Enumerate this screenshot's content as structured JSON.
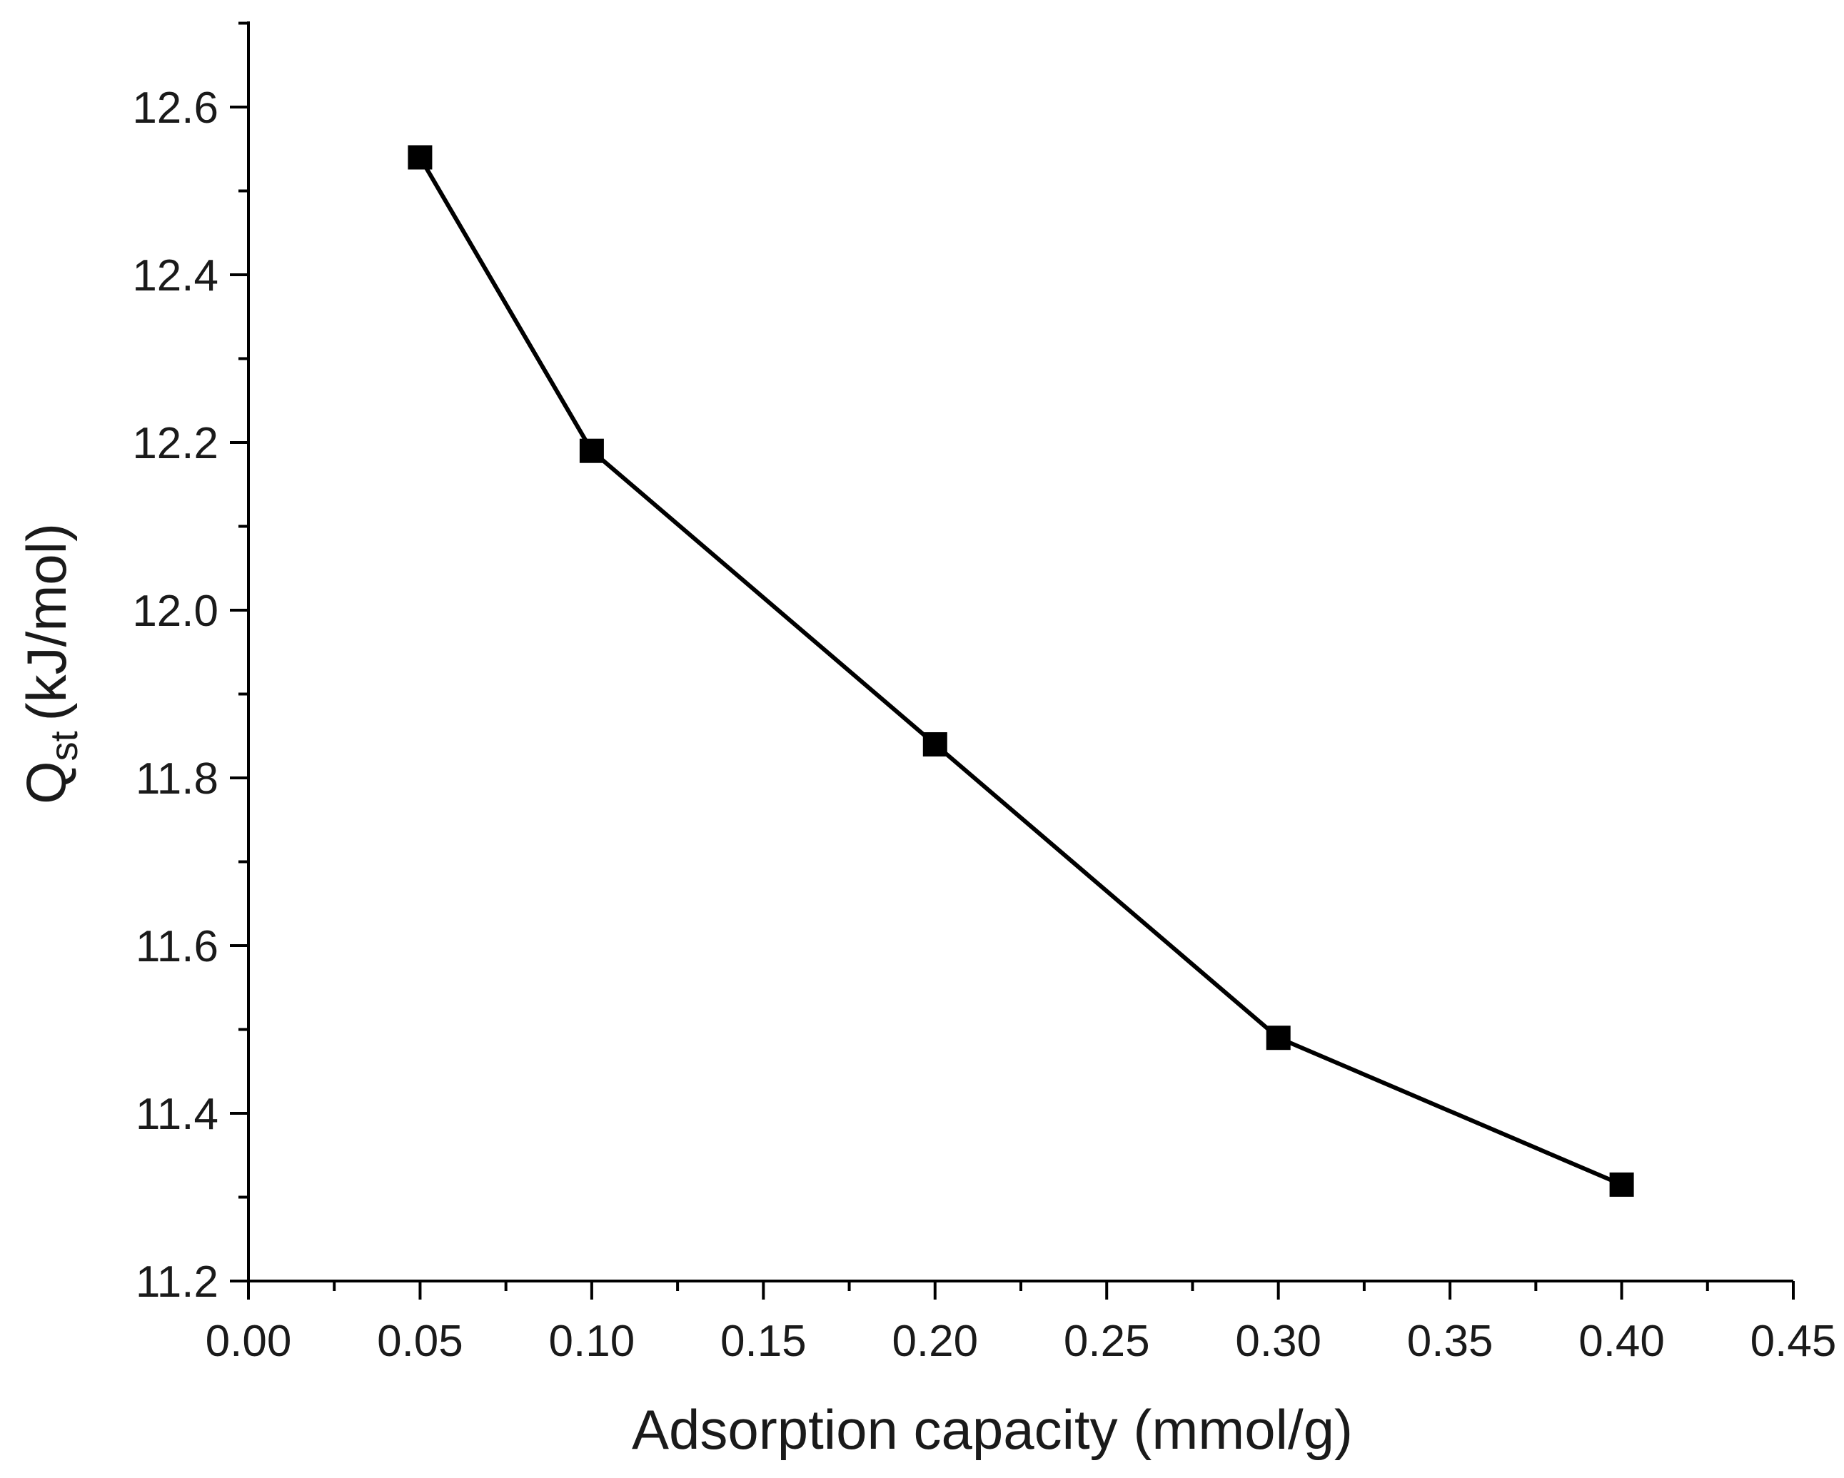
{
  "chart_data": {
    "type": "line",
    "title": "",
    "xlabel": "Adsorption capacity (mmol/g)",
    "ylabel": {
      "main": "Q",
      "subscript": "st",
      "unit": "(kJ/mol)"
    },
    "xlim": [
      0.0,
      0.45
    ],
    "ylim": [
      11.2,
      12.7
    ],
    "xticks": [
      0.0,
      0.05,
      0.1,
      0.15,
      0.2,
      0.25,
      0.3,
      0.35,
      0.4,
      0.45
    ],
    "xtick_labels": [
      "0.00",
      "0.05",
      "0.10",
      "0.15",
      "0.20",
      "0.25",
      "0.30",
      "0.35",
      "0.40",
      "0.45"
    ],
    "yticks": [
      11.2,
      11.4,
      11.6,
      11.8,
      12.0,
      12.2,
      12.4,
      12.6
    ],
    "ytick_labels": [
      "11.2",
      "11.4",
      "11.6",
      "11.8",
      "12.0",
      "12.2",
      "12.4",
      "12.6"
    ],
    "grid": false,
    "legend": null,
    "marker": "square",
    "series": [
      {
        "name": "Qst",
        "x": [
          0.05,
          0.1,
          0.2,
          0.3,
          0.4
        ],
        "y": [
          12.54,
          12.19,
          11.84,
          11.49,
          11.315
        ]
      }
    ],
    "colors": {
      "line": "#000000",
      "marker": "#000000",
      "axis": "#000000"
    }
  }
}
